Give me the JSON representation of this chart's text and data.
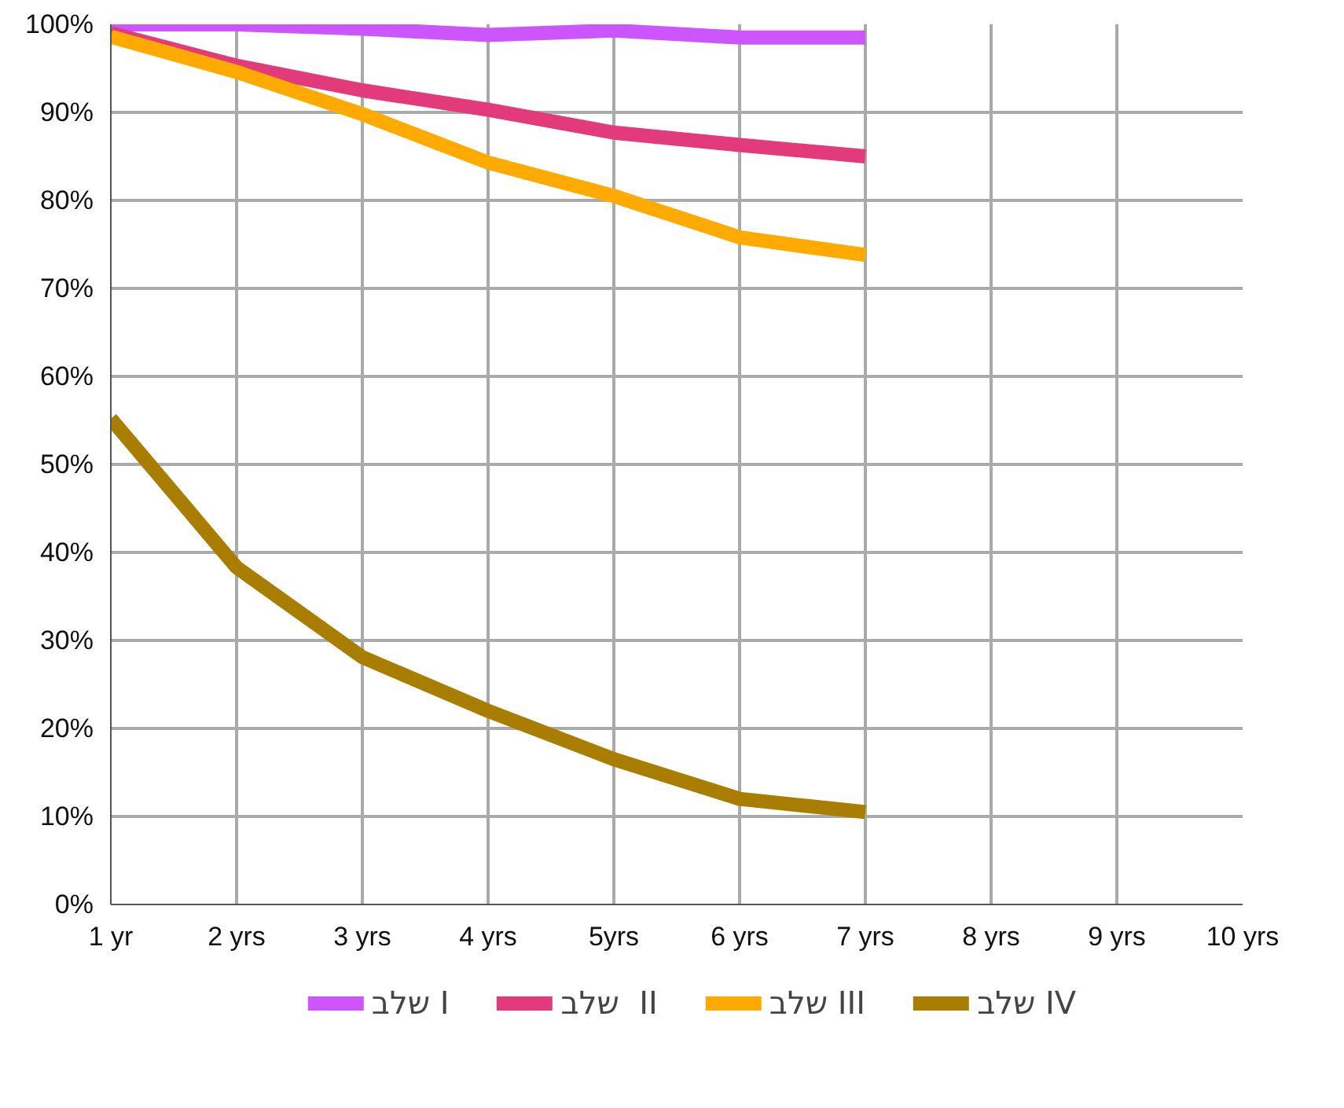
{
  "chart_data": {
    "type": "line",
    "categories": [
      "1 yr",
      "2 yrs",
      "3 yrs",
      "4 yrs",
      "5yrs",
      "6 yrs",
      "7 yrs",
      "8 yrs",
      "9 yrs",
      "10 yrs"
    ],
    "series": [
      {
        "name": "שלב I",
        "color": "#cc55ff",
        "values": [
          100,
          100,
          99.5,
          98.8,
          99.3,
          98.5,
          98.5,
          null,
          null,
          null
        ]
      },
      {
        "name": "שלב  II",
        "color": "#e23a7a",
        "values": [
          99,
          95.3,
          92.5,
          90.3,
          87.7,
          86.3,
          85,
          null,
          null,
          null
        ]
      },
      {
        "name": "שלב III",
        "color": "#ffaa00",
        "values": [
          98.6,
          94.6,
          89.8,
          84.3,
          80.5,
          75.8,
          73.8,
          null,
          null,
          null
        ]
      },
      {
        "name": "שלב IV",
        "color": "#a87d00",
        "values": [
          55.2,
          38.3,
          28.1,
          22,
          16.5,
          12,
          10.5,
          null,
          null,
          null
        ]
      }
    ],
    "ylim": [
      0,
      100
    ],
    "yticks": [
      {
        "value": 0,
        "label": "0%"
      },
      {
        "value": 10,
        "label": "10%"
      },
      {
        "value": 20,
        "label": "20%"
      },
      {
        "value": 30,
        "label": "30%"
      },
      {
        "value": 40,
        "label": "40%"
      },
      {
        "value": 50,
        "label": "50%"
      },
      {
        "value": 60,
        "label": "60%"
      },
      {
        "value": 70,
        "label": "70%"
      },
      {
        "value": 80,
        "label": "80%"
      },
      {
        "value": 90,
        "label": "90%"
      },
      {
        "value": 100,
        "label": "100%"
      }
    ],
    "grid": true,
    "legend": "bottom",
    "line_style": "solid"
  }
}
